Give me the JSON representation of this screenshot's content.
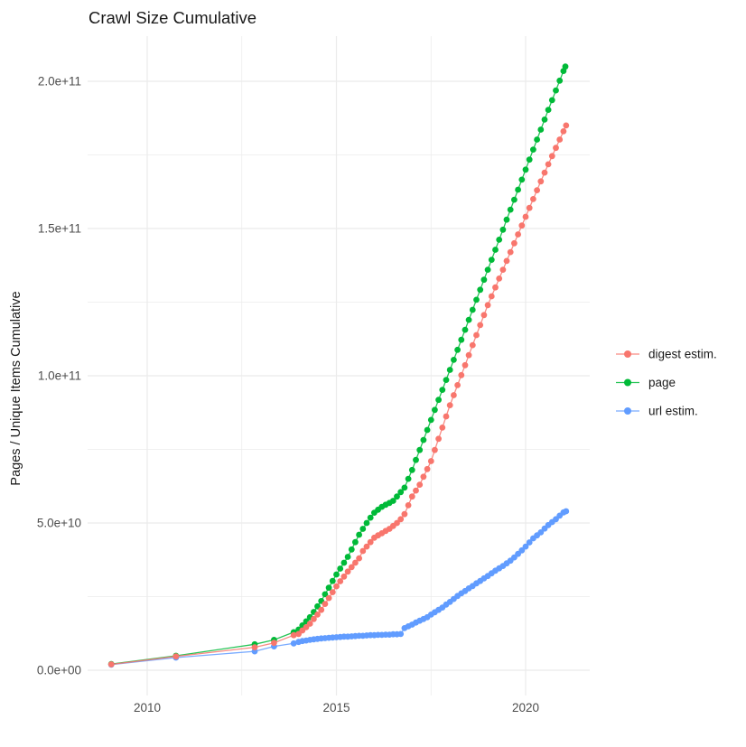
{
  "title": "Crawl Size Cumulative",
  "axes": {
    "y_label": "Pages / Unique Items Cumulative",
    "y_ticks": [
      {
        "label": "0.0e+00",
        "value_e9": 0
      },
      {
        "label": "5.0e+10",
        "value_e9": 50
      },
      {
        "label": "1.0e+11",
        "value_e9": 100
      },
      {
        "label": "1.5e+11",
        "value_e9": 150
      },
      {
        "label": "2.0e+11",
        "value_e9": 200
      }
    ],
    "y_minor_e9": [
      25,
      75,
      125,
      175
    ],
    "x_ticks": [
      {
        "label": "2010",
        "value": 2010
      },
      {
        "label": "2015",
        "value": 2015
      },
      {
        "label": "2020",
        "value": 2020
      }
    ],
    "x_minor": [
      2012.5,
      2017.5
    ]
  },
  "legend": {
    "position": "right",
    "items": [
      {
        "label": "digest estim.",
        "color": "#F8766D"
      },
      {
        "label": "page",
        "color": "#00BA38"
      },
      {
        "label": "url estim.",
        "color": "#619CFF"
      }
    ]
  },
  "colors": {
    "grid": "#EBEBEB",
    "axis_text": "#4D4D4D",
    "title_text": "#1A1A1A",
    "background": "#FFFFFF",
    "digest": "#F8766D",
    "page": "#00BA38",
    "url": "#619CFF"
  },
  "chart_data": {
    "type": "line",
    "title": "Crawl Size Cumulative",
    "xlabel": "",
    "ylabel": "Pages / Unique Items Cumulative",
    "x_unit": "year",
    "y_scale": 1000000000,
    "y_unit": "count (values below in billions, 1e9)",
    "xlim": [
      2008.45,
      2021.8
    ],
    "ylim_e9": [
      -8,
      215
    ],
    "grid": true,
    "legend_position": "right",
    "marker": "point",
    "draw_order": [
      "page",
      "url estim.",
      "digest estim."
    ],
    "series": [
      {
        "name": "digest estim.",
        "color": "#F8766D",
        "points": [
          [
            2009.05,
            2.0
          ],
          [
            2010.76,
            4.7
          ],
          [
            2012.84,
            7.8
          ],
          [
            2013.35,
            9.3
          ],
          [
            2013.87,
            11.9
          ],
          [
            2014.0,
            12.3
          ],
          [
            2014.1,
            13.5
          ],
          [
            2014.2,
            14.6
          ],
          [
            2014.3,
            15.8
          ],
          [
            2014.4,
            17.4
          ],
          [
            2014.5,
            18.9
          ],
          [
            2014.6,
            20.5
          ],
          [
            2014.7,
            22.5
          ],
          [
            2014.8,
            24.5
          ],
          [
            2014.9,
            26.5
          ],
          [
            2015.0,
            28.5
          ],
          [
            2015.1,
            30.2
          ],
          [
            2015.2,
            31.8
          ],
          [
            2015.3,
            33.5
          ],
          [
            2015.4,
            35.0
          ],
          [
            2015.5,
            36.5
          ],
          [
            2015.6,
            38.0
          ],
          [
            2015.7,
            40.5
          ],
          [
            2015.8,
            42.0
          ],
          [
            2015.9,
            43.5
          ],
          [
            2016.0,
            45.0
          ],
          [
            2016.1,
            45.8
          ],
          [
            2016.2,
            46.5
          ],
          [
            2016.3,
            47.3
          ],
          [
            2016.4,
            48.0
          ],
          [
            2016.5,
            49.0
          ],
          [
            2016.6,
            50.0
          ],
          [
            2016.7,
            51.3
          ],
          [
            2016.8,
            53.0
          ],
          [
            2016.9,
            56.0
          ],
          [
            2017.0,
            59.0
          ],
          [
            2017.1,
            61.0
          ],
          [
            2017.2,
            63.0
          ],
          [
            2017.3,
            65.7
          ],
          [
            2017.4,
            68.3
          ],
          [
            2017.5,
            71.0
          ],
          [
            2017.6,
            74.8
          ],
          [
            2017.7,
            78.6
          ],
          [
            2017.8,
            82.4
          ],
          [
            2017.9,
            86.2
          ],
          [
            2018.0,
            90.0
          ],
          [
            2018.1,
            93.4
          ],
          [
            2018.2,
            96.8
          ],
          [
            2018.3,
            100.2
          ],
          [
            2018.4,
            103.6
          ],
          [
            2018.5,
            107.0
          ],
          [
            2018.6,
            110.4
          ],
          [
            2018.7,
            113.8
          ],
          [
            2018.8,
            117.2
          ],
          [
            2018.9,
            120.6
          ],
          [
            2019.0,
            124.0
          ],
          [
            2019.1,
            127.0
          ],
          [
            2019.2,
            130.0
          ],
          [
            2019.3,
            133.0
          ],
          [
            2019.4,
            136.0
          ],
          [
            2019.5,
            139.0
          ],
          [
            2019.6,
            142.0
          ],
          [
            2019.7,
            145.0
          ],
          [
            2019.8,
            148.0
          ],
          [
            2019.9,
            151.0
          ],
          [
            2020.0,
            154.0
          ],
          [
            2020.1,
            157.0
          ],
          [
            2020.2,
            160.0
          ],
          [
            2020.3,
            163.0
          ],
          [
            2020.4,
            166.0
          ],
          [
            2020.5,
            169.0
          ],
          [
            2020.6,
            171.8
          ],
          [
            2020.7,
            174.6
          ],
          [
            2020.8,
            177.4
          ],
          [
            2020.9,
            180.2
          ],
          [
            2021.0,
            183.0
          ],
          [
            2021.07,
            185.0
          ]
        ]
      },
      {
        "name": "page",
        "color": "#00BA38",
        "points": [
          [
            2009.05,
            2.1
          ],
          [
            2010.76,
            4.9
          ],
          [
            2012.84,
            8.8
          ],
          [
            2013.35,
            10.3
          ],
          [
            2013.87,
            12.9
          ],
          [
            2014.0,
            13.8
          ],
          [
            2014.1,
            15.2
          ],
          [
            2014.2,
            16.6
          ],
          [
            2014.3,
            18.0
          ],
          [
            2014.4,
            19.8
          ],
          [
            2014.5,
            21.7
          ],
          [
            2014.6,
            23.5
          ],
          [
            2014.7,
            25.8
          ],
          [
            2014.8,
            28.0
          ],
          [
            2014.9,
            30.3
          ],
          [
            2015.0,
            32.5
          ],
          [
            2015.1,
            34.5
          ],
          [
            2015.2,
            36.5
          ],
          [
            2015.3,
            38.5
          ],
          [
            2015.4,
            41.0
          ],
          [
            2015.5,
            43.5
          ],
          [
            2015.6,
            46.0
          ],
          [
            2015.7,
            48.0
          ],
          [
            2015.8,
            50.0
          ],
          [
            2015.9,
            51.8
          ],
          [
            2016.0,
            53.5
          ],
          [
            2016.1,
            54.5
          ],
          [
            2016.2,
            55.5
          ],
          [
            2016.3,
            56.2
          ],
          [
            2016.4,
            56.8
          ],
          [
            2016.5,
            57.5
          ],
          [
            2016.6,
            59.0
          ],
          [
            2016.7,
            60.5
          ],
          [
            2016.8,
            62.0
          ],
          [
            2016.9,
            65.0
          ],
          [
            2017.0,
            68.0
          ],
          [
            2017.1,
            71.4
          ],
          [
            2017.2,
            74.8
          ],
          [
            2017.3,
            78.2
          ],
          [
            2017.4,
            81.6
          ],
          [
            2017.5,
            85.0
          ],
          [
            2017.6,
            88.4
          ],
          [
            2017.7,
            91.8
          ],
          [
            2017.8,
            95.2
          ],
          [
            2017.9,
            98.6
          ],
          [
            2018.0,
            102.0
          ],
          [
            2018.1,
            105.4
          ],
          [
            2018.2,
            108.8
          ],
          [
            2018.3,
            112.2
          ],
          [
            2018.4,
            115.6
          ],
          [
            2018.5,
            119.0
          ],
          [
            2018.6,
            122.4
          ],
          [
            2018.7,
            125.8
          ],
          [
            2018.8,
            129.2
          ],
          [
            2018.9,
            132.6
          ],
          [
            2019.0,
            136.0
          ],
          [
            2019.1,
            139.4
          ],
          [
            2019.2,
            142.8
          ],
          [
            2019.3,
            146.2
          ],
          [
            2019.4,
            149.6
          ],
          [
            2019.5,
            153.0
          ],
          [
            2019.6,
            156.4
          ],
          [
            2019.7,
            159.8
          ],
          [
            2019.8,
            163.2
          ],
          [
            2019.9,
            166.6
          ],
          [
            2020.0,
            170.0
          ],
          [
            2020.1,
            173.4
          ],
          [
            2020.2,
            176.8
          ],
          [
            2020.3,
            180.2
          ],
          [
            2020.4,
            183.6
          ],
          [
            2020.5,
            187.0
          ],
          [
            2020.6,
            190.3
          ],
          [
            2020.7,
            193.6
          ],
          [
            2020.8,
            196.9
          ],
          [
            2020.9,
            200.2
          ],
          [
            2021.0,
            203.5
          ],
          [
            2021.05,
            205.0
          ]
        ]
      },
      {
        "name": "url estim.",
        "color": "#619CFF",
        "points": [
          [
            2009.05,
            1.9
          ],
          [
            2010.76,
            4.3
          ],
          [
            2012.84,
            6.4
          ],
          [
            2013.35,
            8.1
          ],
          [
            2013.87,
            9.1
          ],
          [
            2014.0,
            9.6
          ],
          [
            2014.1,
            9.9
          ],
          [
            2014.2,
            10.1
          ],
          [
            2014.3,
            10.3
          ],
          [
            2014.4,
            10.5
          ],
          [
            2014.5,
            10.65
          ],
          [
            2014.6,
            10.8
          ],
          [
            2014.7,
            10.9
          ],
          [
            2014.8,
            11.0
          ],
          [
            2014.9,
            11.1
          ],
          [
            2015.0,
            11.2
          ],
          [
            2015.1,
            11.3
          ],
          [
            2015.2,
            11.4
          ],
          [
            2015.3,
            11.4
          ],
          [
            2015.4,
            11.5
          ],
          [
            2015.5,
            11.6
          ],
          [
            2015.6,
            11.7
          ],
          [
            2015.7,
            11.7
          ],
          [
            2015.8,
            11.8
          ],
          [
            2015.9,
            11.9
          ],
          [
            2016.0,
            11.9
          ],
          [
            2016.1,
            12.0
          ],
          [
            2016.2,
            12.0
          ],
          [
            2016.3,
            12.1
          ],
          [
            2016.4,
            12.1
          ],
          [
            2016.5,
            12.2
          ],
          [
            2016.6,
            12.2
          ],
          [
            2016.7,
            12.3
          ],
          [
            2016.8,
            14.3
          ],
          [
            2016.9,
            14.9
          ],
          [
            2017.0,
            15.5
          ],
          [
            2017.1,
            16.2
          ],
          [
            2017.2,
            16.8
          ],
          [
            2017.3,
            17.4
          ],
          [
            2017.4,
            18.0
          ],
          [
            2017.5,
            18.9
          ],
          [
            2017.6,
            19.7
          ],
          [
            2017.7,
            20.5
          ],
          [
            2017.8,
            21.3
          ],
          [
            2017.9,
            22.3
          ],
          [
            2018.0,
            23.2
          ],
          [
            2018.1,
            24.2
          ],
          [
            2018.2,
            25.2
          ],
          [
            2018.3,
            26.1
          ],
          [
            2018.4,
            26.9
          ],
          [
            2018.5,
            27.8
          ],
          [
            2018.6,
            28.6
          ],
          [
            2018.7,
            29.5
          ],
          [
            2018.8,
            30.3
          ],
          [
            2018.9,
            31.2
          ],
          [
            2019.0,
            32.0
          ],
          [
            2019.1,
            32.9
          ],
          [
            2019.2,
            33.8
          ],
          [
            2019.3,
            34.6
          ],
          [
            2019.4,
            35.4
          ],
          [
            2019.5,
            36.3
          ],
          [
            2019.6,
            37.2
          ],
          [
            2019.7,
            38.3
          ],
          [
            2019.8,
            39.5
          ],
          [
            2019.9,
            40.7
          ],
          [
            2020.0,
            42.0
          ],
          [
            2020.1,
            43.4
          ],
          [
            2020.2,
            44.8
          ],
          [
            2020.3,
            45.8
          ],
          [
            2020.4,
            46.8
          ],
          [
            2020.5,
            48.1
          ],
          [
            2020.6,
            49.3
          ],
          [
            2020.7,
            50.3
          ],
          [
            2020.8,
            51.3
          ],
          [
            2020.9,
            52.5
          ],
          [
            2021.0,
            53.6
          ],
          [
            2021.07,
            54.0
          ]
        ]
      }
    ]
  }
}
